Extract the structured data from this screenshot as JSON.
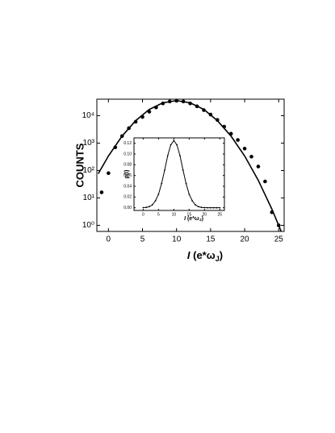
{
  "chart_data": [
    {
      "type": "line",
      "ylabel": "COUNTS",
      "xlabel": [
        "I",
        " (e*ω",
        "J",
        ")"
      ],
      "xlim": [
        -1.7,
        25.8
      ],
      "xticks": [
        0,
        5,
        10,
        15,
        20,
        25
      ],
      "ylim": [
        0.6,
        40000
      ],
      "log_y": true,
      "yticks": [
        {
          "value": 1,
          "label": "10⁰"
        },
        {
          "value": 10,
          "label": "10¹"
        },
        {
          "value": 100,
          "label": "10²"
        },
        {
          "value": 1000,
          "label": "10³"
        },
        {
          "value": 10000,
          "label": "10⁴"
        }
      ],
      "series": [
        {
          "mode": "markers",
          "color": "#000000",
          "x": [
            -1,
            0,
            1,
            2,
            3,
            4,
            5,
            6,
            7,
            8,
            9,
            10,
            11,
            12,
            13,
            14,
            15,
            16,
            17,
            18,
            19,
            20,
            21,
            22,
            23,
            24,
            25
          ],
          "values": [
            16,
            80,
            700,
            1800,
            3500,
            6000,
            9000,
            14000,
            20000,
            28000,
            33000,
            35000,
            33000,
            28000,
            22000,
            16000,
            11000,
            7000,
            4000,
            2200,
            1300,
            630,
            320,
            140,
            40,
            3,
            1
          ]
        },
        {
          "mode": "line",
          "color": "#000000",
          "x": [
            -1.5,
            0,
            2,
            4,
            6,
            8,
            10,
            12,
            14,
            16,
            18,
            20,
            22,
            24,
            25.5
          ],
          "values": [
            76,
            340,
            1800,
            6600,
            17000,
            29500,
            35500,
            29500,
            17000,
            6600,
            1800,
            340,
            44,
            3.9,
            0.5
          ]
        }
      ]
    },
    {
      "type": "line",
      "ylabel": "p(I)",
      "xlabel": [
        "I",
        " (e*ω",
        "J",
        ")"
      ],
      "xlim": [
        -3,
        26.5
      ],
      "xticks": [
        0,
        5,
        10,
        15,
        20,
        25
      ],
      "ylim": [
        -0.005,
        0.13
      ],
      "yticks": [
        {
          "value": 0,
          "label": "0.00"
        },
        {
          "value": 0.02,
          "label": "0.02"
        },
        {
          "value": 0.04,
          "label": "0.04"
        },
        {
          "value": 0.06,
          "label": "0.06"
        },
        {
          "value": 0.08,
          "label": "0.08"
        },
        {
          "value": 0.1,
          "label": "0.10"
        },
        {
          "value": 0.12,
          "label": "0.12"
        }
      ],
      "series": [
        {
          "mode": "line+markers",
          "color": "#000000",
          "x": [
            0,
            1,
            2,
            3,
            4,
            5,
            6,
            7,
            8,
            9,
            10,
            11,
            12,
            13,
            14,
            15,
            16,
            17,
            18,
            19,
            20,
            21,
            22,
            23,
            24,
            25
          ],
          "values": [
            0.0002,
            0.0007,
            0.0021,
            0.0055,
            0.013,
            0.025,
            0.045,
            0.07,
            0.097,
            0.117,
            0.125,
            0.117,
            0.097,
            0.07,
            0.045,
            0.025,
            0.013,
            0.0055,
            0.0021,
            0.0007,
            0.0002,
            0,
            0,
            0,
            0,
            0
          ]
        }
      ]
    }
  ]
}
